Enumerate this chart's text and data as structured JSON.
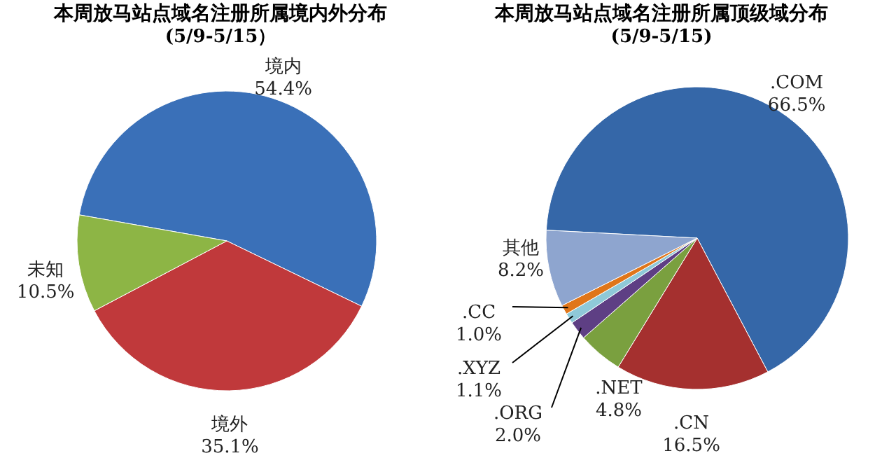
{
  "chart_data": [
    {
      "type": "pie",
      "title": "本周放马站点域名注册所属境内外分布",
      "subtitle": "(5/9-5/15）",
      "categories": [
        "境内",
        "境外",
        "未知"
      ],
      "values": [
        54.4,
        35.1,
        10.5
      ],
      "colors": [
        "#3a70b8",
        "#c0393b",
        "#8db545"
      ],
      "value_labels": [
        "54.4%",
        "35.1%",
        "10.5%"
      ],
      "legend": false
    },
    {
      "type": "pie",
      "title": "本周放马站点域名注册所属顶级域分布",
      "subtitle": "(5/9-5/15)",
      "categories": [
        ".COM",
        ".CN",
        ".NET",
        ".ORG",
        ".XYZ",
        ".CC",
        "其他"
      ],
      "values": [
        66.5,
        16.5,
        4.8,
        2.0,
        1.1,
        1.0,
        8.2
      ],
      "colors": [
        "#3567a8",
        "#a5302f",
        "#7aa03f",
        "#5e3f84",
        "#8fc9d8",
        "#e0761a",
        "#8ea5cf"
      ],
      "value_labels": [
        "66.5%",
        "16.5%",
        "4.8%",
        "2.0%",
        "1.1%",
        "1.0%",
        "8.2%"
      ],
      "legend": false
    }
  ]
}
